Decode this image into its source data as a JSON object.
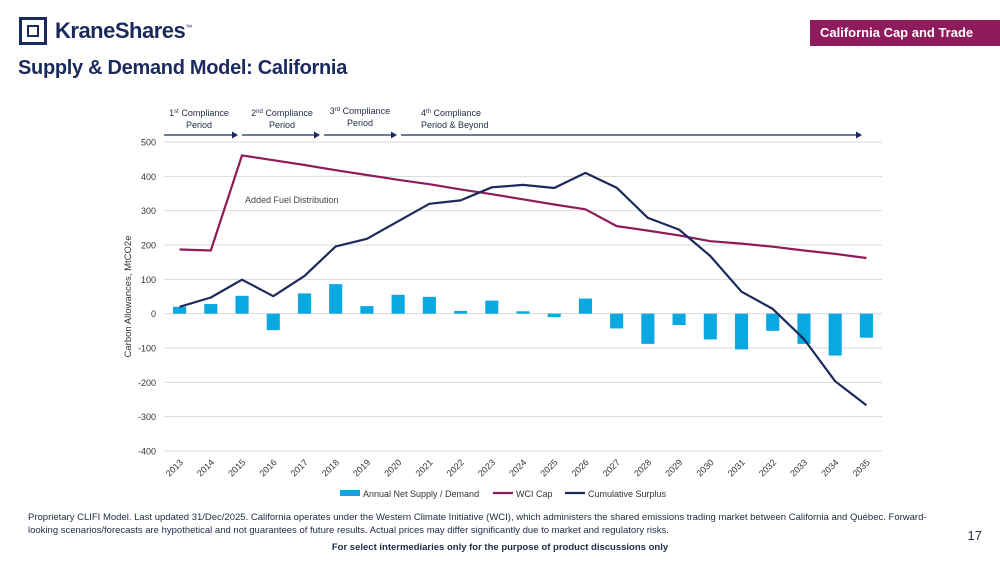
{
  "brand": {
    "logo_text": "KraneShares",
    "trademark": "™"
  },
  "header": {
    "badge": "California Cap and Trade",
    "title": "Supply & Demand Model: California"
  },
  "colors": {
    "navy": "#1b2a5c",
    "magenta": "#8e1b5b",
    "bar": "#0aa8e0",
    "cumulative": "#1b2a5c",
    "grid": "#d9d9d9"
  },
  "chart_data": {
    "type": "bar+line",
    "ylabel": "Carbon Allowances, MtCO2e",
    "ylim": [
      -400,
      500
    ],
    "yticks": [
      500,
      400,
      300,
      200,
      100,
      0,
      -100,
      -200,
      -300,
      -400
    ],
    "categories": [
      "2013",
      "2014",
      "2015",
      "2016",
      "2017",
      "2018",
      "2019",
      "2020",
      "2021",
      "2022",
      "2023",
      "2024",
      "2025",
      "2026",
      "2027",
      "2028",
      "2029",
      "2030",
      "2031",
      "2032",
      "2033",
      "2034",
      "2035"
    ],
    "series": [
      {
        "name": "Annual Net Supply / Demand",
        "kind": "bar",
        "values": [
          20,
          28,
          52,
          -48,
          59,
          86,
          22,
          55,
          49,
          8,
          38,
          7,
          -10,
          44,
          -43,
          -88,
          -33,
          -75,
          -104,
          -50,
          -88,
          -122,
          -70
        ]
      },
      {
        "name": "WCI Cap",
        "kind": "line",
        "values": [
          187,
          184,
          461,
          447,
          433,
          418,
          404,
          390,
          377,
          362,
          348,
          333,
          318,
          304,
          255,
          242,
          228,
          211,
          204,
          195,
          184,
          174,
          162
        ]
      },
      {
        "name": "Cumulative Surplus",
        "kind": "line",
        "values": [
          20,
          47,
          99,
          51,
          110,
          196,
          218,
          269,
          320,
          330,
          368,
          375,
          366,
          410,
          367,
          279,
          245,
          168,
          64,
          14,
          -74,
          -197,
          -267
        ]
      }
    ],
    "annotation": "Added Fuel Distribution",
    "periods": [
      {
        "sup": "st",
        "pre": "1",
        "line1": " Compliance",
        "line2": "Period"
      },
      {
        "sup": "nd",
        "pre": "2",
        "line1": " Compliance",
        "line2": "Period"
      },
      {
        "sup": "rd",
        "pre": "3",
        "line1": " Compliance",
        "line2": "Period"
      },
      {
        "sup": "th",
        "pre": "4",
        "line1": " Compliance",
        "line2": "Period & Beyond"
      }
    ],
    "legend": [
      "Annual Net Supply / Demand",
      "WCI Cap",
      "Cumulative Surplus"
    ]
  },
  "footer": {
    "note": "Proprietary CLIFI Model. Last updated 31/Dec/2025. California operates under the Western Climate Initiative (WCI), which administers the shared emissions trading market between California and Québec. Forward-looking scenarios/forecasts are hypothetical and not guarantees of future results. Actual prices may differ significantly due to market and regulatory risks.",
    "disclaimer": "For select intermediaries only for the purpose of product discussions only",
    "page": "17"
  }
}
